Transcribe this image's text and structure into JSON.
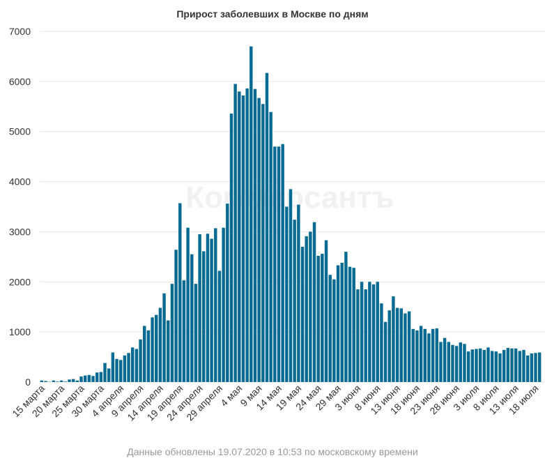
{
  "chart_data": {
    "type": "bar",
    "title": "Прирост заболевших в Москве по дням",
    "watermark": "Коммерсантъ",
    "footnote": "Данные обновлены 19.07.2020 в 10:53 по московскому времени",
    "bar_color": "#066a92",
    "ylim": [
      0,
      7000
    ],
    "yticks": [
      0,
      1000,
      2000,
      3000,
      4000,
      5000,
      6000,
      7000
    ],
    "start_date": "2020-03-15",
    "x_ticks": [
      {
        "index": 0,
        "label": "15 марта"
      },
      {
        "index": 5,
        "label": "20 марта"
      },
      {
        "index": 10,
        "label": "25 марта"
      },
      {
        "index": 15,
        "label": "30 марта"
      },
      {
        "index": 20,
        "label": "4 апреля"
      },
      {
        "index": 25,
        "label": "9 апреля"
      },
      {
        "index": 30,
        "label": "14 апреля"
      },
      {
        "index": 35,
        "label": "19 апреля"
      },
      {
        "index": 40,
        "label": "24 апреля"
      },
      {
        "index": 45,
        "label": "29 апреля"
      },
      {
        "index": 50,
        "label": "4 мая"
      },
      {
        "index": 55,
        "label": "9 мая"
      },
      {
        "index": 60,
        "label": "14 мая"
      },
      {
        "index": 65,
        "label": "19 мая"
      },
      {
        "index": 70,
        "label": "24 мая"
      },
      {
        "index": 75,
        "label": "29 мая"
      },
      {
        "index": 80,
        "label": "3 июня"
      },
      {
        "index": 85,
        "label": "8 июня"
      },
      {
        "index": 90,
        "label": "13 июня"
      },
      {
        "index": 95,
        "label": "18 июня"
      },
      {
        "index": 100,
        "label": "23 июня"
      },
      {
        "index": 105,
        "label": "28 июня"
      },
      {
        "index": 110,
        "label": "3 июля"
      },
      {
        "index": 115,
        "label": "8 июля"
      },
      {
        "index": 120,
        "label": "13 июля"
      },
      {
        "index": 125,
        "label": "18 июля"
      }
    ],
    "values": [
      30,
      20,
      5,
      30,
      10,
      30,
      10,
      50,
      60,
      30,
      110,
      130,
      140,
      120,
      190,
      200,
      380,
      270,
      590,
      460,
      440,
      530,
      580,
      690,
      660,
      850,
      1120,
      1030,
      1290,
      1340,
      1480,
      1770,
      1230,
      1960,
      2640,
      3570,
      2030,
      3080,
      2550,
      1960,
      2950,
      2610,
      2960,
      2860,
      3070,
      2220,
      3080,
      3560,
      5360,
      5950,
      5800,
      5720,
      5860,
      6700,
      5850,
      5670,
      5550,
      6170,
      5390,
      4700,
      4700,
      4750,
      3500,
      3850,
      3240,
      3540,
      2700,
      2910,
      3000,
      3190,
      2520,
      2560,
      2830,
      2140,
      2050,
      2330,
      2380,
      2600,
      2300,
      2280,
      1850,
      2000,
      1850,
      2000,
      1950,
      2000,
      1570,
      1200,
      1430,
      1710,
      1480,
      1470,
      1370,
      1410,
      1060,
      1030,
      1120,
      1060,
      970,
      1060,
      1070,
      800,
      880,
      800,
      740,
      720,
      790,
      760,
      610,
      650,
      660,
      670,
      640,
      690,
      620,
      610,
      570,
      640,
      680,
      670,
      670,
      620,
      640,
      530,
      570,
      580,
      590
    ]
  }
}
